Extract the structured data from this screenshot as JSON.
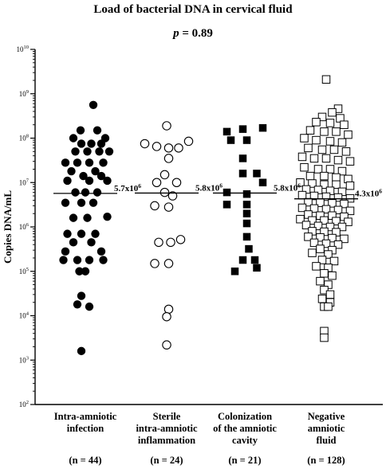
{
  "chart_data": {
    "type": "scatter",
    "title": "Load of bacterial DNA in cervical fluid",
    "subtitle": {
      "label": "p",
      "operator": " = ",
      "value": "0.89"
    },
    "ylabel": "Copies DNA/mL",
    "yscale": "log",
    "ylim": [
      100,
      10000000000
    ],
    "yticks": [
      {
        "value": 100,
        "base": "10",
        "exp": "2"
      },
      {
        "value": 1000,
        "base": "10",
        "exp": "3"
      },
      {
        "value": 10000,
        "base": "10",
        "exp": "4"
      },
      {
        "value": 100000,
        "base": "10",
        "exp": "5"
      },
      {
        "value": 1000000,
        "base": "10",
        "exp": "6"
      },
      {
        "value": 10000000,
        "base": "10",
        "exp": "7"
      },
      {
        "value": 100000000,
        "base": "10",
        "exp": "8"
      },
      {
        "value": 1000000000,
        "base": "10",
        "exp": "9"
      },
      {
        "value": 10000000000,
        "base": "10",
        "exp": "10"
      }
    ],
    "groups": [
      {
        "label_lines": [
          "Intra-amniotic",
          "infection"
        ],
        "n_label": "(n = 44)",
        "marker": "filled-circle",
        "median_label": {
          "mantissa": "5.7x10",
          "exp": "6"
        },
        "median": 5700000,
        "points": [
          [
            0.2,
            560000000
          ],
          [
            -0.12,
            150000000
          ],
          [
            0.3,
            150000000
          ],
          [
            -0.3,
            100000000
          ],
          [
            0.5,
            100000000
          ],
          [
            -0.1,
            75000000
          ],
          [
            0.15,
            75000000
          ],
          [
            0.4,
            75000000
          ],
          [
            -0.25,
            50000000
          ],
          [
            0.05,
            50000000
          ],
          [
            0.35,
            50000000
          ],
          [
            0.6,
            50000000
          ],
          [
            -0.5,
            28000000
          ],
          [
            -0.2,
            28000000
          ],
          [
            0.1,
            28000000
          ],
          [
            0.45,
            28000000
          ],
          [
            -0.35,
            18000000
          ],
          [
            0.25,
            18000000
          ],
          [
            -0.05,
            14000000
          ],
          [
            0.4,
            14000000
          ],
          [
            -0.45,
            11000000
          ],
          [
            0.1,
            11000000
          ],
          [
            0.55,
            11000000
          ],
          [
            -0.25,
            6000000
          ],
          [
            0.0,
            6000000
          ],
          [
            0.3,
            6000000
          ],
          [
            -0.5,
            3500000
          ],
          [
            -0.1,
            3500000
          ],
          [
            0.2,
            3500000
          ],
          [
            0.55,
            1700000
          ],
          [
            -0.3,
            1600000
          ],
          [
            0.05,
            1600000
          ],
          [
            -0.45,
            700000
          ],
          [
            -0.1,
            700000
          ],
          [
            0.25,
            700000
          ],
          [
            -0.3,
            450000
          ],
          [
            0.15,
            450000
          ],
          [
            -0.5,
            280000
          ],
          [
            0.4,
            280000
          ],
          [
            -0.55,
            180000
          ],
          [
            -0.2,
            180000
          ],
          [
            0.1,
            180000
          ],
          [
            0.45,
            180000
          ],
          [
            -0.15,
            100000
          ],
          [
            0.0,
            100000
          ],
          [
            -0.1,
            28000
          ],
          [
            -0.2,
            18000
          ],
          [
            0.1,
            16000
          ],
          [
            -0.1,
            1600
          ]
        ]
      },
      {
        "label_lines": [
          "Sterile",
          "intra-amniotic",
          "inflammation"
        ],
        "n_label": "(n = 24)",
        "marker": "open-circle",
        "median_label": {
          "mantissa": "5.8x10",
          "exp": "6"
        },
        "median": 5800000,
        "points": [
          [
            0.0,
            190000000
          ],
          [
            0.55,
            85000000
          ],
          [
            -0.55,
            75000000
          ],
          [
            -0.25,
            65000000
          ],
          [
            0.05,
            60000000
          ],
          [
            0.3,
            60000000
          ],
          [
            0.05,
            35000000
          ],
          [
            -0.05,
            15000000
          ],
          [
            -0.25,
            10000000
          ],
          [
            0.25,
            10000000
          ],
          [
            -0.05,
            6000000
          ],
          [
            0.15,
            5000000
          ],
          [
            -0.3,
            3000000
          ],
          [
            0.05,
            2800000
          ],
          [
            -0.2,
            450000
          ],
          [
            0.1,
            450000
          ],
          [
            0.35,
            520000
          ],
          [
            -0.3,
            150000
          ],
          [
            0.05,
            150000
          ],
          [
            0.05,
            14000
          ],
          [
            0.0,
            9500
          ],
          [
            0.0,
            2200
          ]
        ]
      },
      {
        "label_lines": [
          "Colonization",
          "of the amniotic",
          "cavity"
        ],
        "n_label": "(n = 21)",
        "marker": "filled-square",
        "median_label": {
          "mantissa": "5.8x10",
          "exp": "6"
        },
        "median": 5800000,
        "points": [
          [
            -0.45,
            140000000
          ],
          [
            -0.05,
            160000000
          ],
          [
            0.45,
            170000000
          ],
          [
            -0.35,
            90000000
          ],
          [
            0.05,
            90000000
          ],
          [
            -0.05,
            35000000
          ],
          [
            -0.05,
            16000000
          ],
          [
            0.3,
            16000000
          ],
          [
            0.45,
            10000000
          ],
          [
            -0.45,
            6000000
          ],
          [
            0.05,
            5500000
          ],
          [
            -0.45,
            3200000
          ],
          [
            0.05,
            3200000
          ],
          [
            0.05,
            2000000
          ],
          [
            0.05,
            1200000
          ],
          [
            0.05,
            600000
          ],
          [
            0.1,
            320000
          ],
          [
            -0.05,
            180000
          ],
          [
            0.25,
            180000
          ],
          [
            0.3,
            120000
          ],
          [
            -0.25,
            100000
          ]
        ]
      },
      {
        "label_lines": [
          "Negative",
          "amniotic",
          "fluid"
        ],
        "n_label": "(n = 128)",
        "marker": "open-square",
        "median_label": {
          "mantissa": "4.3x10",
          "exp": "6"
        },
        "median": 4300000,
        "points": [
          [
            0.0,
            2100000000
          ],
          [
            0.3,
            460000000
          ],
          [
            0.15,
            380000000
          ],
          [
            -0.1,
            300000000
          ],
          [
            0.35,
            280000000
          ],
          [
            -0.25,
            230000000
          ],
          [
            0.1,
            220000000
          ],
          [
            0.45,
            200000000
          ],
          [
            -0.4,
            150000000
          ],
          [
            -0.05,
            140000000
          ],
          [
            0.25,
            140000000
          ],
          [
            0.55,
            120000000
          ],
          [
            -0.55,
            100000000
          ],
          [
            -0.25,
            90000000
          ],
          [
            0.1,
            85000000
          ],
          [
            0.4,
            80000000
          ],
          [
            -0.45,
            60000000
          ],
          [
            -0.1,
            55000000
          ],
          [
            0.2,
            55000000
          ],
          [
            0.5,
            50000000
          ],
          [
            -0.6,
            38000000
          ],
          [
            -0.3,
            35000000
          ],
          [
            0.0,
            35000000
          ],
          [
            0.3,
            32000000
          ],
          [
            0.6,
            30000000
          ],
          [
            -0.55,
            22000000
          ],
          [
            -0.2,
            20000000
          ],
          [
            0.1,
            20000000
          ],
          [
            0.4,
            18000000
          ],
          [
            -0.4,
            14000000
          ],
          [
            -0.05,
            14000000
          ],
          [
            0.25,
            13000000
          ],
          [
            0.55,
            12000000
          ],
          [
            -0.65,
            10000000
          ],
          [
            -0.35,
            9500000
          ],
          [
            -0.05,
            9000000
          ],
          [
            0.25,
            9000000
          ],
          [
            0.6,
            8500000
          ],
          [
            -0.5,
            7000000
          ],
          [
            -0.2,
            6800000
          ],
          [
            0.1,
            6500000
          ],
          [
            0.4,
            6200000
          ],
          [
            -0.6,
            5200000
          ],
          [
            -0.3,
            5000000
          ],
          [
            0.0,
            4800000
          ],
          [
            0.3,
            4600000
          ],
          [
            0.6,
            4400000
          ],
          [
            -0.45,
            3600000
          ],
          [
            -0.15,
            3500000
          ],
          [
            0.15,
            3400000
          ],
          [
            0.45,
            3300000
          ],
          [
            -0.6,
            2700000
          ],
          [
            -0.3,
            2600000
          ],
          [
            0.0,
            2500000
          ],
          [
            0.3,
            2400000
          ],
          [
            0.6,
            2300000
          ],
          [
            -0.45,
            1900000
          ],
          [
            -0.15,
            1800000
          ],
          [
            0.15,
            1800000
          ],
          [
            0.45,
            1700000
          ],
          [
            -0.65,
            1500000
          ],
          [
            -0.35,
            1400000
          ],
          [
            -0.05,
            1400000
          ],
          [
            0.25,
            1350000
          ],
          [
            0.55,
            1300000
          ],
          [
            -0.5,
            1100000
          ],
          [
            -0.2,
            1050000
          ],
          [
            0.1,
            1000000
          ],
          [
            0.4,
            1000000
          ],
          [
            -0.35,
            800000
          ],
          [
            -0.05,
            780000
          ],
          [
            0.25,
            760000
          ],
          [
            -0.45,
            600000
          ],
          [
            -0.15,
            580000
          ],
          [
            0.15,
            560000
          ],
          [
            0.45,
            540000
          ],
          [
            -0.3,
            440000
          ],
          [
            0.0,
            420000
          ],
          [
            0.3,
            400000
          ],
          [
            -0.15,
            320000
          ],
          [
            0.15,
            300000
          ],
          [
            -0.35,
            260000
          ],
          [
            0.05,
            240000
          ],
          [
            -0.1,
            180000
          ],
          [
            0.2,
            170000
          ],
          [
            -0.25,
            130000
          ],
          [
            0.05,
            120000
          ],
          [
            -0.05,
            90000
          ],
          [
            0.15,
            80000
          ],
          [
            -0.15,
            60000
          ],
          [
            0.05,
            50000
          ],
          [
            -0.05,
            38000
          ],
          [
            0.1,
            30000
          ],
          [
            -0.1,
            24000
          ],
          [
            0.1,
            20000
          ],
          [
            -0.05,
            16000
          ],
          [
            0.05,
            16000
          ],
          [
            -0.05,
            4500
          ],
          [
            -0.05,
            3200
          ]
        ]
      }
    ]
  }
}
